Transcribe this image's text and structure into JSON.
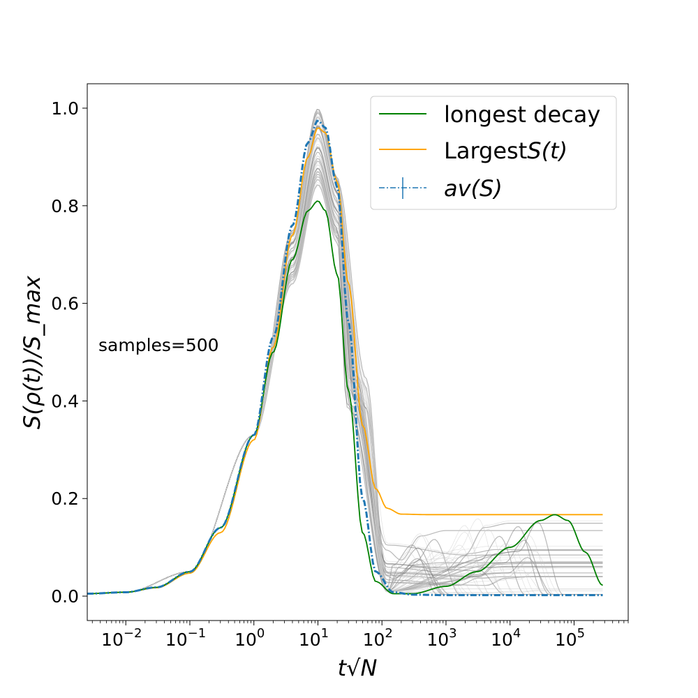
{
  "chart_data": {
    "type": "line",
    "title": "",
    "xlabel": "t√N",
    "ylabel": "S(ρ(t))/S_max",
    "x_scale": "log",
    "xlim": [
      0.0025,
      700000
    ],
    "ylim": [
      -0.05,
      1.05
    ],
    "grid": false,
    "legend_position": "top-right",
    "annotation": "samples=500",
    "x_ticks": [
      {
        "value": 0.01,
        "base": "10",
        "exp": "−2"
      },
      {
        "value": 0.1,
        "base": "10",
        "exp": "−1"
      },
      {
        "value": 1,
        "base": "10",
        "exp": "0"
      },
      {
        "value": 10,
        "base": "10",
        "exp": "1"
      },
      {
        "value": 100,
        "base": "10",
        "exp": "2"
      },
      {
        "value": 1000,
        "base": "10",
        "exp": "3"
      },
      {
        "value": 10000,
        "base": "10",
        "exp": "4"
      },
      {
        "value": 100000,
        "base": "10",
        "exp": "5"
      }
    ],
    "y_ticks": [
      "0.0",
      "0.2",
      "0.4",
      "0.6",
      "0.8",
      "1.0"
    ],
    "series": [
      {
        "name": "longest decay",
        "color": "#008000",
        "style": "solid",
        "x": [
          0.0025,
          0.01,
          0.03,
          0.1,
          0.3,
          1,
          2,
          4,
          7,
          10,
          13,
          20,
          30,
          50,
          80,
          150,
          300,
          1000,
          3000,
          10000,
          30000,
          50000,
          80000,
          150000,
          280000
        ],
        "y": [
          0.005,
          0.008,
          0.018,
          0.05,
          0.14,
          0.33,
          0.5,
          0.69,
          0.79,
          0.81,
          0.79,
          0.66,
          0.42,
          0.13,
          0.03,
          0.005,
          0.005,
          0.02,
          0.05,
          0.1,
          0.155,
          0.167,
          0.155,
          0.09,
          0.022
        ]
      },
      {
        "name": "LargestS(t)",
        "color": "#ffa500",
        "style": "solid",
        "x": [
          0.0025,
          0.01,
          0.03,
          0.1,
          0.3,
          1,
          2,
          4,
          7,
          10,
          13,
          20,
          30,
          50,
          80,
          120,
          200,
          500,
          1000,
          10000,
          100000,
          280000
        ],
        "y": [
          0.005,
          0.008,
          0.017,
          0.047,
          0.13,
          0.32,
          0.51,
          0.74,
          0.9,
          0.96,
          0.95,
          0.85,
          0.64,
          0.35,
          0.22,
          0.18,
          0.168,
          0.167,
          0.167,
          0.167,
          0.167,
          0.167
        ]
      },
      {
        "name": "av(S)",
        "color": "#1f77b4",
        "style": "dashdot",
        "x": [
          0.0025,
          0.01,
          0.03,
          0.1,
          0.3,
          1,
          2,
          4,
          7,
          10,
          13,
          20,
          30,
          50,
          80,
          150,
          300,
          1000,
          10000,
          100000,
          280000
        ],
        "y": [
          0.005,
          0.008,
          0.018,
          0.05,
          0.14,
          0.33,
          0.53,
          0.76,
          0.93,
          0.975,
          0.96,
          0.84,
          0.56,
          0.2,
          0.05,
          0.008,
          0.003,
          0.002,
          0.002,
          0.002,
          0.002
        ]
      }
    ],
    "background_samples": {
      "color": "#888888",
      "note": "many gray sample trajectories with peaks between 0.81 and 1.0 and late plateaus between 0.0 and 0.167"
    }
  },
  "legend": {
    "items": [
      {
        "label": "longest decay",
        "style": "solid",
        "color": "#008000"
      },
      {
        "label_text": "Largest",
        "label_math": "S(t)",
        "style": "solid",
        "color": "#ffa500"
      },
      {
        "label_math": "av(S)",
        "style": "dashdot",
        "color": "#1f77b4"
      }
    ]
  }
}
